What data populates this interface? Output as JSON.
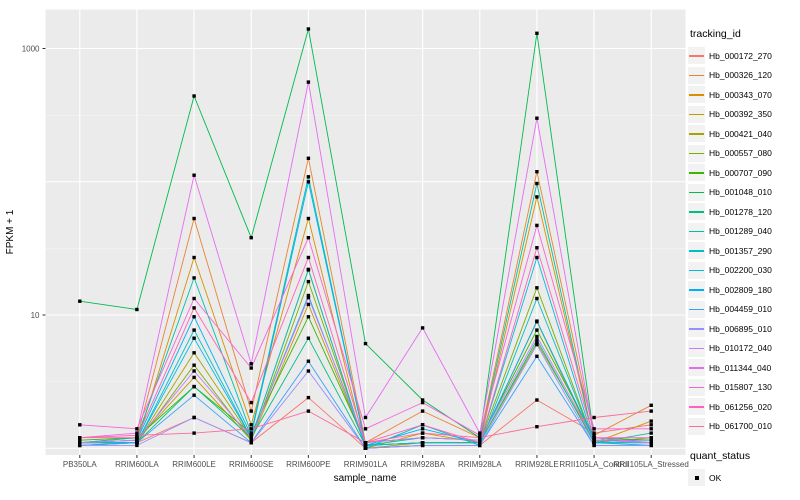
{
  "figure": {
    "panel_bg": "#EBEBEB",
    "grid_color": "#FFFFFF",
    "tick_text_color": "#4D4D4D",
    "marker_color": "#000000"
  },
  "chart_data": {
    "type": "line",
    "title": "",
    "xlabel": "sample_name",
    "ylabel": "FPKM + 1",
    "y_scale": "log10",
    "grid": true,
    "legend_position": "right",
    "y_ticks": [
      {
        "value": 1000,
        "label": "1000"
      },
      {
        "value": 10,
        "label": "10"
      }
    ],
    "y_minor": [
      3.162,
      31.62,
      316.2
    ],
    "y_major_grid": [
      1,
      10,
      100,
      1000
    ],
    "ylim": [
      0.95,
      1600
    ],
    "categories": [
      "PB350LA",
      "RRIM600LA",
      "RRIM600LE",
      "RRIM600SE",
      "RRIM600PE",
      "RRIM901LA",
      "RRIM928BA",
      "RRIM928LA",
      "RRIM928LE",
      "RRII105LA_Control",
      "RRII105LA_Stressed"
    ],
    "legend": {
      "color_title": "tracking_id",
      "shape_title": "quant_status",
      "shape_items": [
        {
          "label": "OK"
        }
      ]
    },
    "series": [
      {
        "name": "Hb_000172_270",
        "color": "#F8766D",
        "values": [
          1.05,
          1.1,
          1.7,
          1.1,
          2.4,
          1.0,
          1.05,
          1.05,
          2.3,
          1.3,
          1.5
        ]
      },
      {
        "name": "Hb_000326_120",
        "color": "#EA8331",
        "values": [
          1.1,
          1.2,
          53.0,
          1.9,
          150,
          1.1,
          1.9,
          1.2,
          119,
          1.25,
          2.1
        ]
      },
      {
        "name": "Hb_000343_070",
        "color": "#D89000",
        "values": [
          1.1,
          1.1,
          27.0,
          1.5,
          53.0,
          1.0,
          1.3,
          1.1,
          77.0,
          1.1,
          1.6
        ]
      },
      {
        "name": "Hb_000392_350",
        "color": "#C09B00",
        "values": [
          1.1,
          1.15,
          3.4,
          1.15,
          12.0,
          1.05,
          1.1,
          1.1,
          8.9,
          1.1,
          1.2
        ]
      },
      {
        "name": "Hb_000421_040",
        "color": "#A3A500",
        "values": [
          1.1,
          1.1,
          5.2,
          1.2,
          21.8,
          1.0,
          1.1,
          1.1,
          6.2,
          1.15,
          1.1
        ]
      },
      {
        "name": "Hb_000557_080",
        "color": "#7CAE00",
        "values": [
          1.1,
          1.1,
          4.2,
          1.15,
          17.8,
          1.05,
          1.1,
          1.1,
          16.0,
          1.1,
          1.1
        ]
      },
      {
        "name": "Hb_000707_090",
        "color": "#39B600",
        "values": [
          1.15,
          1.2,
          2.9,
          1.3,
          9.7,
          1.1,
          1.2,
          1.15,
          7.7,
          1.2,
          1.15
        ]
      },
      {
        "name": "Hb_001048_010",
        "color": "#00BB4E",
        "values": [
          12.7,
          11.0,
          440,
          38.0,
          1400,
          6.1,
          2.3,
          1.2,
          1300,
          1.2,
          1.1
        ]
      },
      {
        "name": "Hb_001278_120",
        "color": "#00BF7D",
        "values": [
          1.1,
          1.1,
          2.9,
          1.2,
          6.7,
          1.05,
          1.1,
          1.1,
          6.5,
          1.1,
          1.1
        ]
      },
      {
        "name": "Hb_001289_040",
        "color": "#00C1A3",
        "values": [
          1.1,
          1.2,
          19.0,
          1.3,
          109,
          1.05,
          1.2,
          1.15,
          97.0,
          1.1,
          1.3
        ]
      },
      {
        "name": "Hb_001357_290",
        "color": "#00BFC4",
        "values": [
          1.05,
          1.1,
          7.7,
          1.2,
          22.0,
          1.0,
          1.5,
          1.05,
          13.3,
          1.1,
          1.1
        ]
      },
      {
        "name": "Hb_002200_030",
        "color": "#00BAE0",
        "values": [
          1.1,
          1.1,
          6.7,
          1.2,
          14.0,
          1.05,
          1.1,
          1.1,
          27.0,
          1.1,
          1.05
        ]
      },
      {
        "name": "Hb_002809_180",
        "color": "#00B0F6",
        "values": [
          1.1,
          1.15,
          9.7,
          1.25,
          100,
          1.05,
          1.4,
          1.1,
          9.0,
          1.15,
          1.15
        ]
      },
      {
        "name": "Hb_004459_010",
        "color": "#35A2FF",
        "values": [
          1.05,
          1.1,
          2.5,
          1.1,
          4.5,
          1.0,
          1.05,
          1.05,
          4.9,
          1.05,
          1.05
        ]
      },
      {
        "name": "Hb_006895_010",
        "color": "#9590FF",
        "values": [
          1.05,
          1.05,
          1.7,
          1.1,
          3.8,
          1.0,
          1.05,
          1.05,
          6.0,
          1.05,
          1.05
        ]
      },
      {
        "name": "Hb_010172_040",
        "color": "#C77CFF",
        "values": [
          1.1,
          1.15,
          3.8,
          1.2,
          13.5,
          1.1,
          1.2,
          1.15,
          6.9,
          1.15,
          1.1
        ]
      },
      {
        "name": "Hb_011344_040",
        "color": "#E76BF3",
        "values": [
          1.2,
          1.3,
          112,
          4.3,
          560,
          1.7,
          8.0,
          1.3,
          300,
          1.2,
          1.1
        ]
      },
      {
        "name": "Hb_015807_130",
        "color": "#FA62DB",
        "values": [
          1.5,
          1.4,
          13.3,
          4.0,
          38.0,
          1.4,
          2.2,
          1.25,
          47.0,
          1.4,
          1.4
        ]
      },
      {
        "name": "Hb_061256_020",
        "color": "#FF62BC",
        "values": [
          1.2,
          1.2,
          11.3,
          2.2,
          27.0,
          1.1,
          1.5,
          1.1,
          32.0,
          1.2,
          1.2
        ]
      },
      {
        "name": "Hb_061700_010",
        "color": "#FF6A98",
        "values": [
          1.2,
          1.25,
          1.3,
          1.4,
          1.9,
          1.1,
          1.3,
          1.2,
          1.45,
          1.7,
          1.9
        ]
      }
    ]
  }
}
